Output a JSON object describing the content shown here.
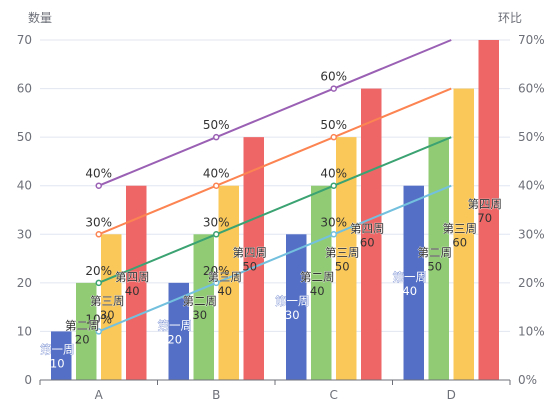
{
  "chart_data": {
    "type": "bar",
    "title": "",
    "categories": [
      "A",
      "B",
      "C",
      "D"
    ],
    "y_left": {
      "label": "数量",
      "min": 0,
      "max": 70,
      "ticks": [
        0,
        10,
        20,
        30,
        40,
        50,
        60,
        70
      ]
    },
    "y_right": {
      "label": "环比",
      "min": 0,
      "max": 70,
      "ticks": [
        "0%",
        "10%",
        "20%",
        "30%",
        "40%",
        "50%",
        "60%",
        "70%"
      ]
    },
    "grid": true,
    "series": [
      {
        "name": "第一周",
        "kind": "bar",
        "color": "#5470c6",
        "values": [
          10,
          20,
          30,
          40
        ],
        "label_color": "#ffffff"
      },
      {
        "name": "第二周",
        "kind": "bar",
        "color": "#91cc75",
        "values": [
          20,
          30,
          40,
          50
        ],
        "label_color": "#333333"
      },
      {
        "name": "第三周",
        "kind": "bar",
        "color": "#fac858",
        "values": [
          30,
          40,
          50,
          60
        ],
        "label_color": "#333333"
      },
      {
        "name": "第四周",
        "kind": "bar",
        "color": "#ee6666",
        "values": [
          40,
          50,
          60,
          70
        ],
        "label_color": "#333333"
      }
    ],
    "lines": [
      {
        "kind": "line",
        "color": "#73c0de",
        "values": [
          10,
          20,
          30,
          40
        ],
        "point_labels": [
          "10%",
          "20%",
          "30%",
          ""
        ]
      },
      {
        "kind": "line",
        "color": "#3ba272",
        "values": [
          20,
          30,
          40,
          50
        ],
        "point_labels": [
          "20%",
          "30%",
          "40%",
          ""
        ]
      },
      {
        "kind": "line",
        "color": "#fc8452",
        "values": [
          30,
          40,
          50,
          60
        ],
        "point_labels": [
          "30%",
          "40%",
          "50%",
          ""
        ]
      },
      {
        "kind": "line",
        "color": "#9a60b4",
        "values": [
          40,
          50,
          60,
          70
        ],
        "point_labels": [
          "40%",
          "50%",
          "60%",
          ""
        ]
      }
    ]
  }
}
